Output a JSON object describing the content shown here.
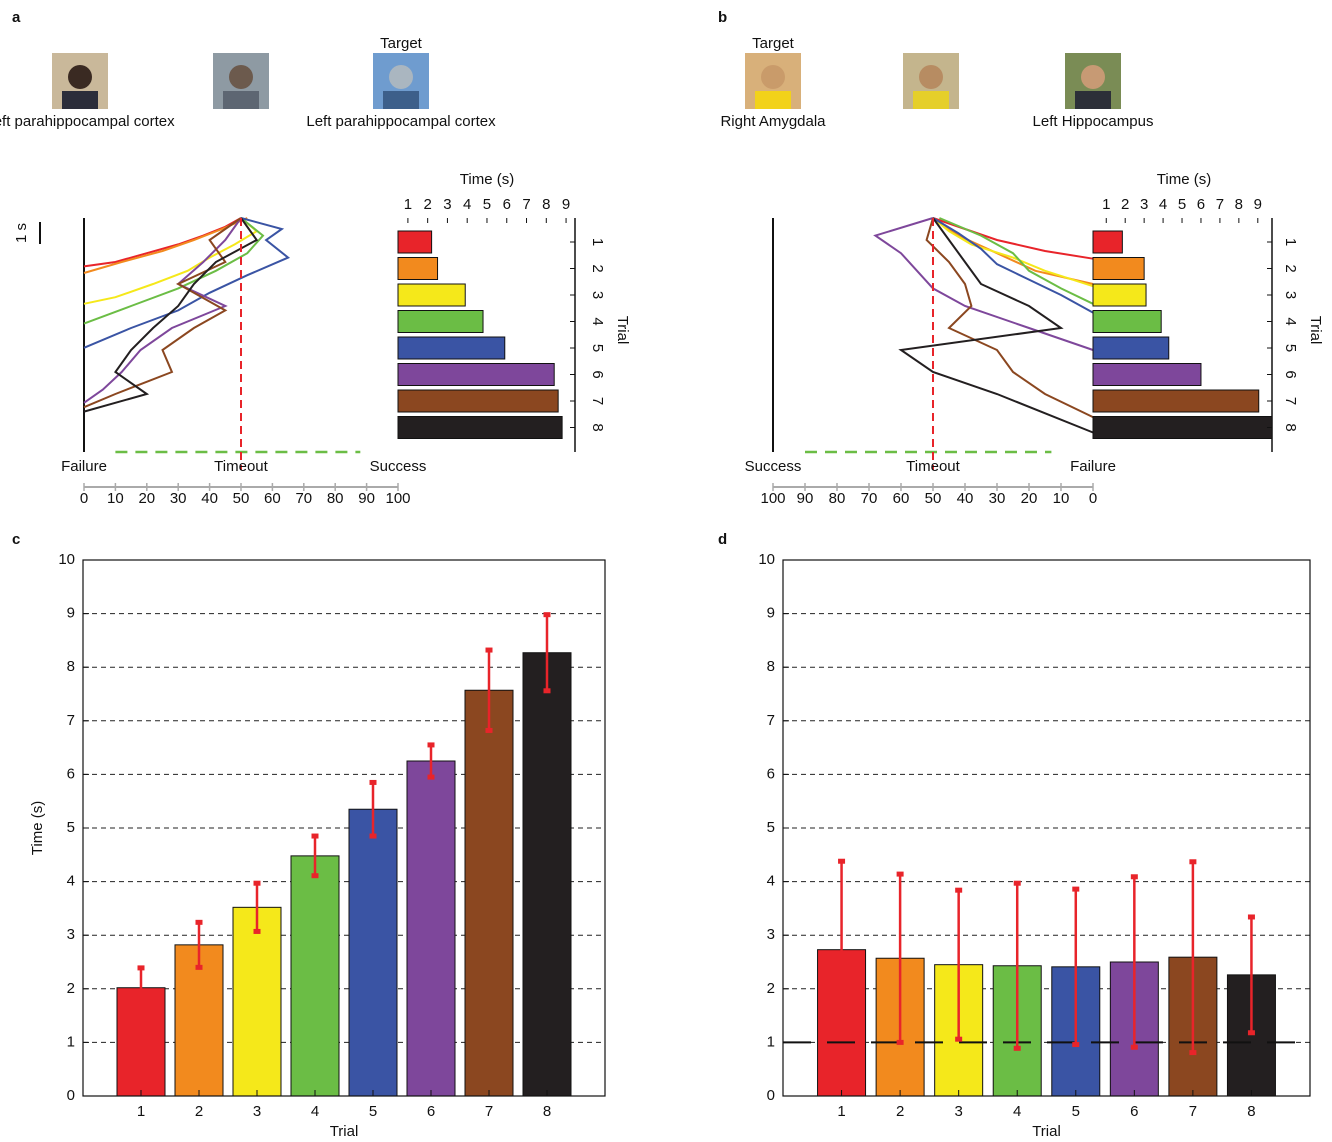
{
  "chart_data": [
    {
      "type": "decoder",
      "letter": "a",
      "images": [
        {
          "label_below": "Left parahippocampal cortex"
        },
        {},
        {
          "label_above": "Target",
          "label_below": "Left parahippocampal cortex"
        }
      ],
      "scale_bar": "1 s",
      "colors": [
        "#e8242a",
        "#f28a1e",
        "#f5e81a",
        "#6bbd45",
        "#3a54a4",
        "#7e479b",
        "#8b4720",
        "#231f20"
      ],
      "xlim": [
        0,
        100
      ],
      "xticks": [
        0,
        10,
        20,
        30,
        40,
        50,
        60,
        70,
        80,
        90,
        100
      ],
      "outcomes": [
        {
          "value": 0,
          "label": "Failure"
        },
        {
          "value": 50,
          "label": "Timeout"
        },
        {
          "value": 100,
          "label": "Success"
        }
      ],
      "target_zone": [
        10,
        88
      ],
      "trajectories": [
        {
          "t": [
            0,
            0.4,
            0.8,
            1.2,
            1.6,
            2.0,
            2.2
          ],
          "x": [
            50,
            45,
            38,
            30,
            20,
            10,
            0
          ]
        },
        {
          "t": [
            0,
            0.5,
            1,
            1.5,
            2,
            2.5
          ],
          "x": [
            52,
            44,
            35,
            25,
            12,
            0
          ]
        },
        {
          "t": [
            0,
            0.6,
            1.2,
            1.8,
            2.4,
            3.0,
            3.6,
            3.9
          ],
          "x": [
            50,
            55,
            48,
            40,
            33,
            22,
            10,
            0
          ]
        },
        {
          "t": [
            0,
            0.8,
            1.6,
            2.4,
            3.2,
            4.0,
            4.8
          ],
          "x": [
            50,
            57,
            52,
            42,
            30,
            15,
            0
          ]
        },
        {
          "t": [
            0,
            0.5,
            1,
            1.8,
            2.6,
            3.4,
            4.2,
            5,
            5.9
          ],
          "x": [
            50,
            63,
            58,
            65,
            52,
            40,
            30,
            15,
            0
          ]
        },
        {
          "t": [
            0,
            1,
            2,
            3,
            4,
            5,
            6,
            7,
            7.8,
            8.4
          ],
          "x": [
            50,
            45,
            38,
            30,
            45,
            28,
            18,
            12,
            6,
            0
          ]
        },
        {
          "t": [
            0,
            1,
            2,
            3,
            4.2,
            5,
            6,
            7,
            8,
            8.6
          ],
          "x": [
            50,
            40,
            45,
            30,
            45,
            35,
            25,
            28,
            10,
            0
          ]
        },
        {
          "t": [
            0,
            1,
            2,
            3,
            4,
            5,
            6,
            7,
            8,
            8.8
          ],
          "x": [
            50,
            55,
            42,
            35,
            30,
            22,
            15,
            10,
            20,
            0
          ]
        }
      ],
      "bars": {
        "title": "Time (s)",
        "ylabel": "Trial",
        "categories": [
          "1",
          "2",
          "3",
          "4",
          "5",
          "6",
          "7",
          "8"
        ],
        "values": [
          2.2,
          2.5,
          3.9,
          4.8,
          5.9,
          8.4,
          8.6,
          8.8
        ],
        "xlim": [
          0.5,
          9.3
        ],
        "xticks": [
          1,
          2,
          3,
          4,
          5,
          6,
          7,
          8,
          9
        ]
      }
    },
    {
      "type": "decoder",
      "letter": "b",
      "images": [
        {
          "label_above": "Target",
          "label_below": "Right Amygdala"
        },
        {},
        {
          "label_below": "Left Hippocampus"
        }
      ],
      "colors": [
        "#e8242a",
        "#f28a1e",
        "#f5e81a",
        "#6bbd45",
        "#3a54a4",
        "#7e479b",
        "#8b4720",
        "#231f20"
      ],
      "xlim": [
        100,
        0
      ],
      "xticks": [
        100,
        90,
        80,
        70,
        60,
        50,
        40,
        30,
        20,
        10,
        0
      ],
      "outcomes": [
        {
          "value": 100,
          "label": "Success"
        },
        {
          "value": 50,
          "label": "Timeout"
        },
        {
          "value": 0,
          "label": "Failure"
        }
      ],
      "target_zone": [
        90,
        13
      ],
      "trajectories": [
        {
          "t": [
            0,
            0.5,
            1,
            1.5,
            1.85
          ],
          "x": [
            50,
            40,
            30,
            15,
            0
          ]
        },
        {
          "t": [
            0,
            0.8,
            1.6,
            2.4,
            3.0
          ],
          "x": [
            50,
            42,
            30,
            18,
            0
          ]
        },
        {
          "t": [
            0,
            0.6,
            1.2,
            1.8,
            2.4,
            3.1
          ],
          "x": [
            50,
            45,
            38,
            25,
            15,
            0
          ]
        },
        {
          "t": [
            0,
            0.8,
            1.6,
            2.4,
            3.2,
            3.9
          ],
          "x": [
            48,
            35,
            25,
            20,
            10,
            0
          ]
        },
        {
          "t": [
            0,
            0.7,
            1.4,
            2.1,
            2.8,
            3.5,
            4.3
          ],
          "x": [
            50,
            42,
            35,
            30,
            20,
            10,
            0
          ]
        },
        {
          "t": [
            0,
            0.8,
            1.6,
            2.4,
            3.2,
            4,
            5,
            6
          ],
          "x": [
            50,
            68,
            60,
            55,
            50,
            40,
            20,
            0
          ]
        },
        {
          "t": [
            0,
            1,
            2,
            3,
            4,
            5,
            6,
            7,
            8,
            9.05
          ],
          "x": [
            50,
            52,
            45,
            40,
            38,
            45,
            30,
            25,
            15,
            0
          ]
        },
        {
          "t": [
            0,
            1,
            2,
            3,
            4,
            5,
            6,
            7,
            8,
            9.75
          ],
          "x": [
            50,
            45,
            40,
            35,
            20,
            10,
            60,
            50,
            30,
            0
          ]
        }
      ],
      "bars": {
        "title": "Time (s)",
        "ylabel": "Trial",
        "categories": [
          "1",
          "2",
          "3",
          "4",
          "5",
          "6",
          "7",
          "8"
        ],
        "values": [
          1.85,
          3.0,
          3.1,
          3.9,
          4.3,
          6.0,
          9.05,
          9.75
        ],
        "xlim": [
          0.3,
          9.75
        ],
        "xticks": [
          1,
          2,
          3,
          4,
          5,
          6,
          7,
          8,
          9
        ]
      }
    },
    {
      "type": "bar",
      "letter": "c",
      "xlabel": "Trial",
      "ylabel": "Time (s)",
      "categories": [
        "1",
        "2",
        "3",
        "4",
        "5",
        "6",
        "7",
        "8"
      ],
      "values": [
        2.02,
        2.82,
        3.52,
        4.48,
        5.35,
        6.25,
        7.57,
        8.27
      ],
      "errors": [
        0.37,
        0.42,
        0.45,
        0.37,
        0.5,
        0.3,
        0.75,
        0.71
      ],
      "colors": [
        "#e8242a",
        "#f28a1e",
        "#f5e81a",
        "#6bbd45",
        "#3a54a4",
        "#7e479b",
        "#8b4720",
        "#231f20"
      ],
      "ylim": [
        0,
        10
      ],
      "yticks": [
        0,
        1,
        2,
        3,
        4,
        5,
        6,
        7,
        8,
        9,
        10
      ],
      "grid": true
    },
    {
      "type": "bar",
      "letter": "d",
      "xlabel": "Trial",
      "categories": [
        "1",
        "2",
        "3",
        "4",
        "5",
        "6",
        "7",
        "8"
      ],
      "values": [
        2.73,
        2.57,
        2.45,
        2.43,
        2.41,
        2.5,
        2.59,
        2.26
      ],
      "errors": [
        1.65,
        1.57,
        1.39,
        1.54,
        1.45,
        1.59,
        1.78,
        1.08
      ],
      "colors": [
        "#e8242a",
        "#f28a1e",
        "#f5e81a",
        "#6bbd45",
        "#3a54a4",
        "#7e479b",
        "#8b4720",
        "#231f20"
      ],
      "ylim": [
        0,
        10
      ],
      "yticks": [
        0,
        1,
        2,
        3,
        4,
        5,
        6,
        7,
        8,
        9,
        10
      ],
      "grid": true,
      "hline": 1
    }
  ]
}
